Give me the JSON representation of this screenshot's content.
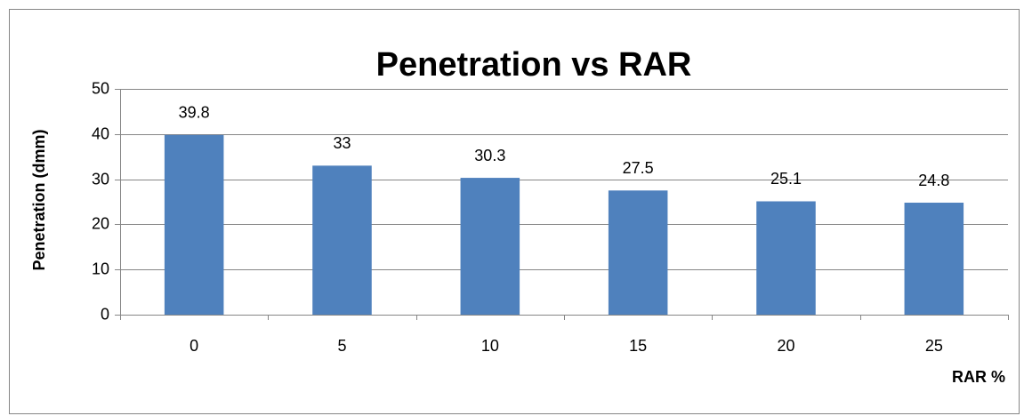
{
  "chart_data": {
    "type": "bar",
    "title": "Penetration vs RAR",
    "x_label": "RAR %",
    "y_label": "Penetration (dmm)",
    "categories": [
      "0",
      "5",
      "10",
      "15",
      "20",
      "25"
    ],
    "values": [
      39.8,
      33,
      30.3,
      27.5,
      25.1,
      24.8
    ],
    "color": "#4f81bd",
    "ylim": [
      0,
      50
    ],
    "yticks": [
      0,
      10,
      20,
      30,
      40,
      50
    ],
    "grid": true
  }
}
